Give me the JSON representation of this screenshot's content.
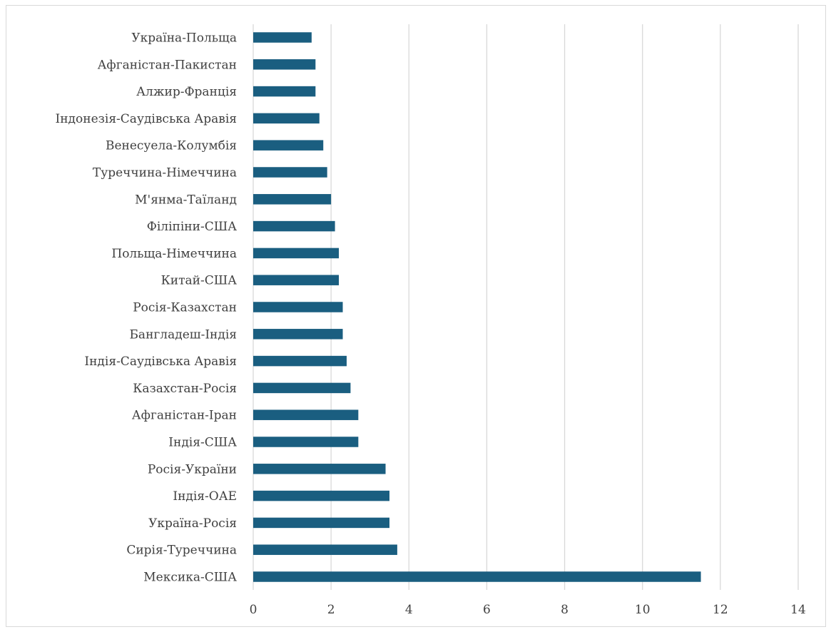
{
  "chart_data": {
    "type": "bar",
    "orientation": "horizontal",
    "categories": [
      "Україна-Польща",
      "Афганістан-Пакистан",
      "Алжир-Франція",
      "Індонезія-Саудівська Аравія",
      "Венесуела-Колумбія",
      "Туреччина-Німеччина",
      "М'янма-Таїланд",
      "Філіпіни-США",
      "Польща-Німеччина",
      "Китай-США",
      "Росія-Казахстан",
      "Бангладеш-Індія",
      "Індія-Саудівська Аравія",
      "Казахстан-Росія",
      "Афганістан-Іран",
      "Індія-США",
      "Росія-України",
      "Індія-ОАЕ",
      "Україна-Росія",
      "Сирія-Туреччина",
      "Мексика-США"
    ],
    "values": [
      1.5,
      1.6,
      1.6,
      1.7,
      1.8,
      1.9,
      2.0,
      2.1,
      2.2,
      2.2,
      2.3,
      2.3,
      2.4,
      2.5,
      2.7,
      2.7,
      3.4,
      3.5,
      3.5,
      3.7,
      11.5
    ],
    "title": "",
    "xlabel": "",
    "ylabel": "",
    "xlim": [
      0,
      14
    ],
    "xticks": [
      "0",
      "2",
      "4",
      "6",
      "8",
      "10",
      "12",
      "14"
    ],
    "grid": "vertical",
    "legend": "none",
    "bar_color": "#1a5e80"
  }
}
